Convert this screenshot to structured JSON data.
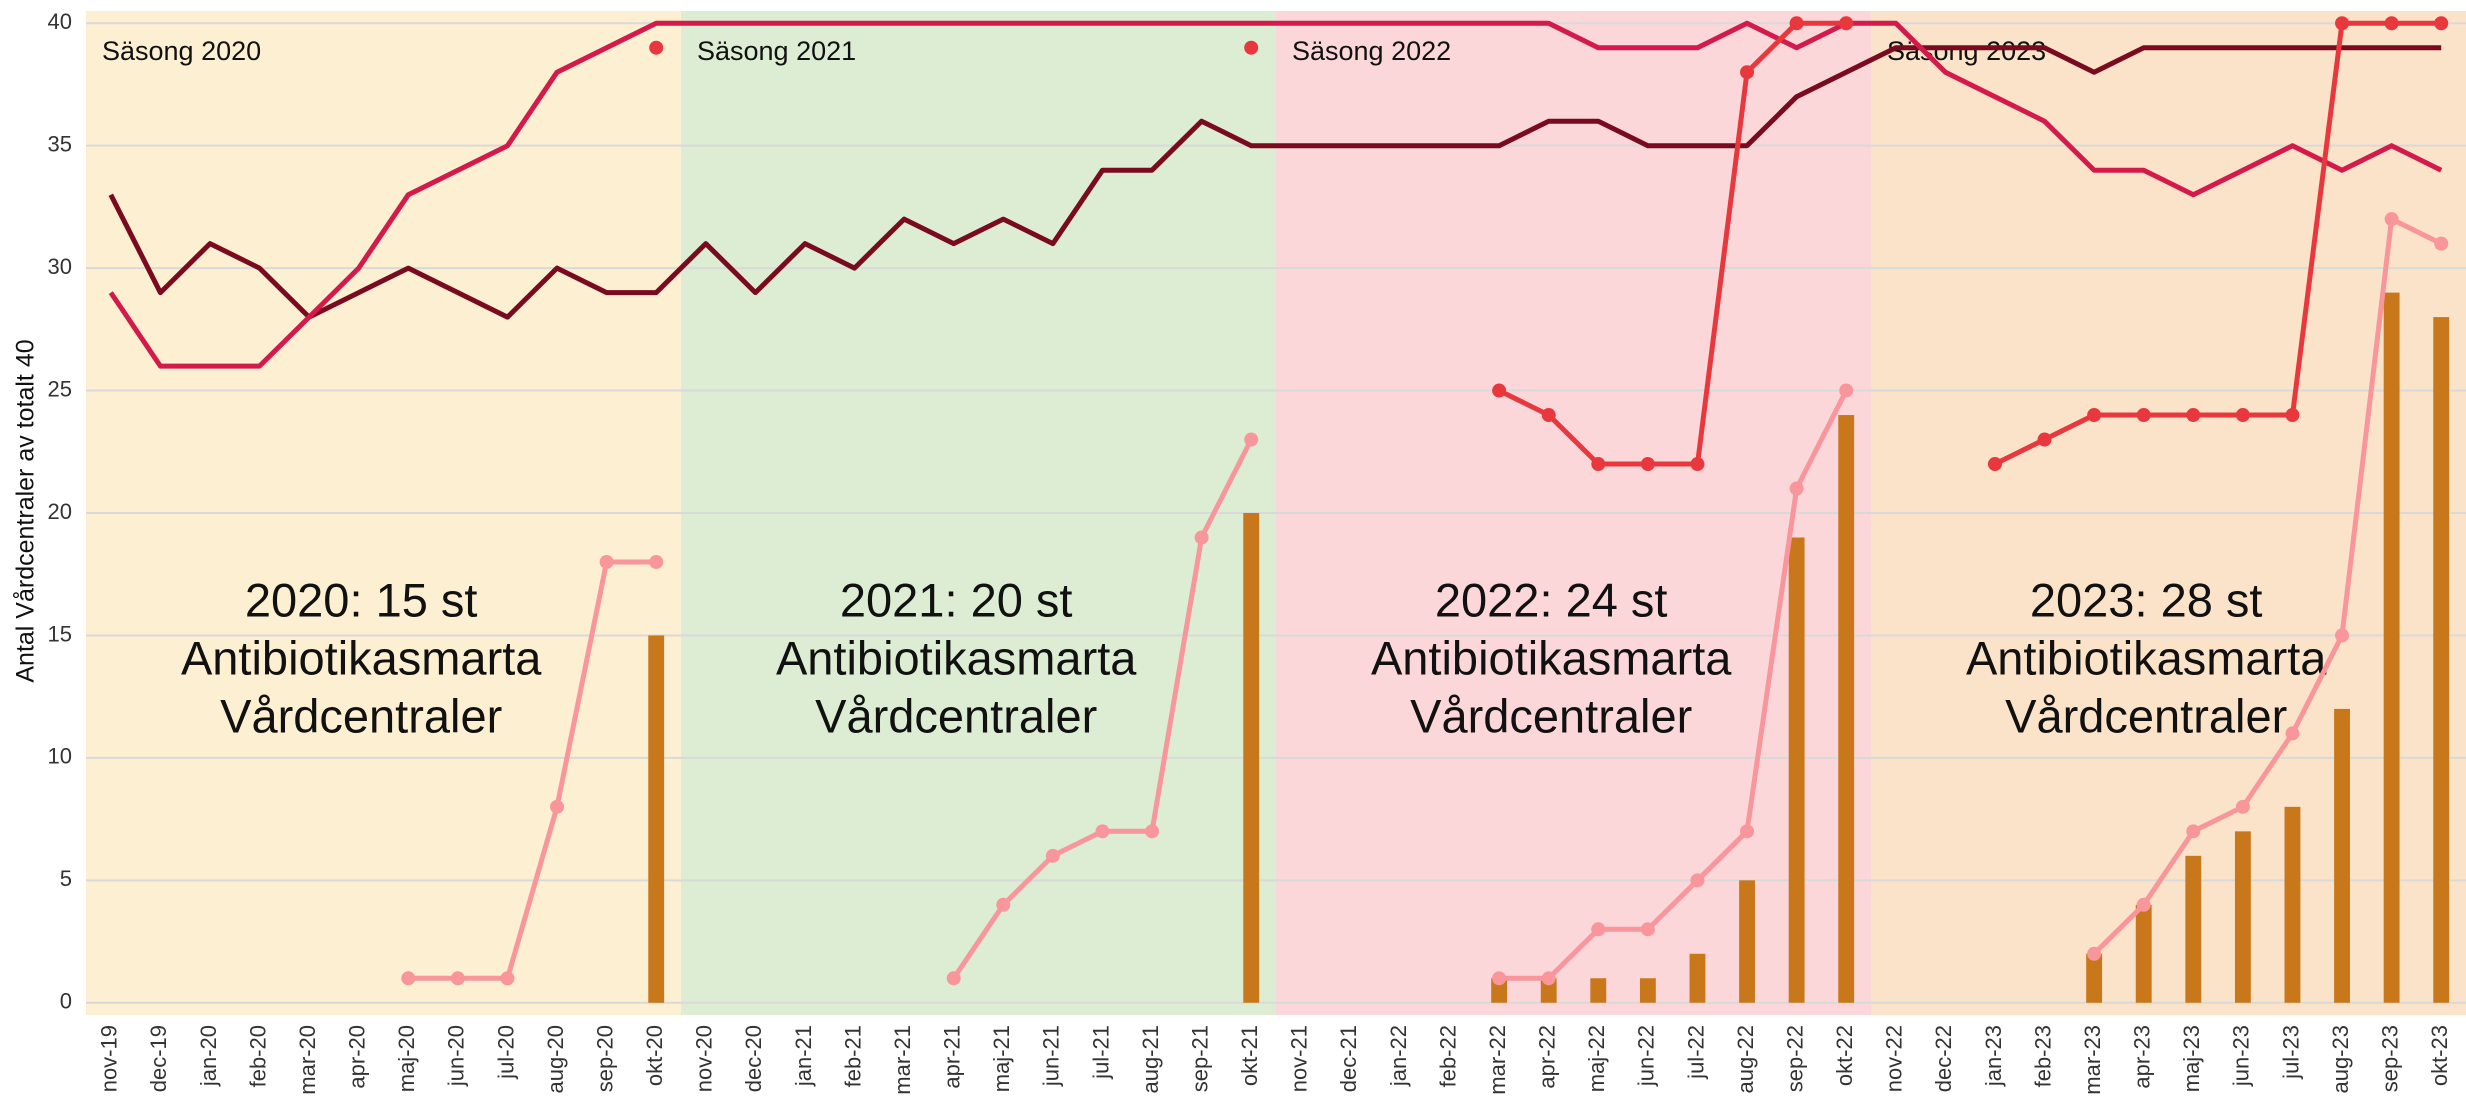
{
  "chart_data": {
    "type": "line",
    "y_label": "Antal Vårdcentraler av totalt 40",
    "categories": [
      "nov-19",
      "dec-19",
      "jan-20",
      "feb-20",
      "mar-20",
      "apr-20",
      "maj-20",
      "jun-20",
      "jul-20",
      "aug-20",
      "sep-20",
      "okt-20",
      "nov-20",
      "dec-20",
      "jan-21",
      "feb-21",
      "mar-21",
      "apr-21",
      "maj-21",
      "jun-21",
      "jul-21",
      "aug-21",
      "sep-21",
      "okt-21",
      "nov-21",
      "dec-21",
      "jan-22",
      "feb-22",
      "mar-22",
      "apr-22",
      "maj-22",
      "jun-22",
      "jul-22",
      "aug-22",
      "sep-22",
      "okt-22",
      "nov-22",
      "dec-22",
      "jan-23",
      "feb-23",
      "mar-23",
      "apr-23",
      "maj-23",
      "jun-23",
      "jul-23",
      "aug-23",
      "sep-23",
      "okt-23"
    ],
    "ylim": [
      -0.5,
      40.5
    ],
    "yticks": [
      0,
      5,
      10,
      15,
      20,
      25,
      30,
      35,
      40
    ],
    "grid": true,
    "seasons": [
      {
        "label": "Säsong 2020",
        "annotation": [
          "2020: 15 st",
          "Antibiotikasmarta",
          "Vårdcentraler"
        ],
        "color": "#fdefd1",
        "from": "nov-19",
        "to": "okt-20"
      },
      {
        "label": "Säsong 2021",
        "annotation": [
          "2021: 20 st",
          "Antibiotikasmarta",
          "Vårdcentraler"
        ],
        "color": "#dcedd3",
        "from": "nov-20",
        "to": "okt-21"
      },
      {
        "label": "Säsong 2022",
        "annotation": [
          "2022: 24 st",
          "Antibiotikasmarta",
          "Vårdcentraler"
        ],
        "color": "#fbd7da",
        "from": "nov-21",
        "to": "okt-22"
      },
      {
        "label": "Säsong 2023",
        "annotation": [
          "2023: 28 st",
          "Antibiotikasmarta",
          "Vårdcentraler"
        ],
        "color": "#fae3c8",
        "from": "nov-22",
        "to": "okt-23"
      }
    ],
    "series": [
      {
        "type": "bar",
        "color": "#c8781a",
        "values": [
          null,
          null,
          null,
          null,
          null,
          null,
          null,
          null,
          null,
          null,
          null,
          15,
          null,
          null,
          null,
          null,
          null,
          null,
          null,
          null,
          null,
          null,
          null,
          20,
          null,
          null,
          null,
          null,
          1,
          1,
          1,
          1,
          2,
          5,
          19,
          24,
          null,
          null,
          null,
          null,
          2,
          4,
          6,
          7,
          8,
          12,
          29,
          28
        ]
      },
      {
        "type": "line",
        "color": "#7a0a1f",
        "markers": false,
        "values": [
          33,
          29,
          31,
          30,
          28,
          29,
          30,
          29,
          28,
          30,
          29,
          29,
          31,
          29,
          31,
          30,
          32,
          31,
          32,
          31,
          34,
          34,
          36,
          35,
          35,
          35,
          35,
          35,
          35,
          36,
          36,
          35,
          35,
          35,
          37,
          38,
          39,
          39,
          39,
          39,
          38,
          39,
          39,
          39,
          39,
          39,
          39,
          39
        ]
      },
      {
        "type": "line",
        "color": "#d31a4b",
        "markers": false,
        "values": [
          29,
          26,
          26,
          26,
          28,
          30,
          33,
          34,
          35,
          38,
          39,
          40,
          40,
          40,
          40,
          40,
          40,
          40,
          40,
          40,
          40,
          40,
          40,
          40,
          40,
          40,
          40,
          40,
          40,
          40,
          39,
          39,
          39,
          40,
          39,
          40,
          40,
          38,
          37,
          36,
          34,
          34,
          33,
          34,
          35,
          34,
          35,
          34
        ]
      },
      {
        "type": "line",
        "color": "#e8383d",
        "markers": true,
        "values": [
          null,
          null,
          null,
          null,
          null,
          null,
          null,
          null,
          null,
          null,
          null,
          39,
          null,
          null,
          null,
          null,
          null,
          null,
          null,
          null,
          null,
          null,
          null,
          39,
          null,
          null,
          null,
          null,
          25,
          24,
          22,
          22,
          22,
          38,
          40,
          40,
          null,
          null,
          22,
          23,
          24,
          24,
          24,
          24,
          24,
          40,
          40,
          40
        ]
      },
      {
        "type": "line",
        "color": "#f8969c",
        "markers": true,
        "values": [
          null,
          null,
          null,
          null,
          null,
          null,
          1,
          1,
          1,
          8,
          18,
          18,
          null,
          null,
          null,
          null,
          null,
          1,
          4,
          6,
          7,
          7,
          19,
          23,
          null,
          null,
          null,
          null,
          1,
          1,
          3,
          3,
          5,
          7,
          21,
          25,
          null,
          null,
          null,
          null,
          2,
          4,
          7,
          8,
          11,
          15,
          32,
          31
        ]
      }
    ]
  }
}
